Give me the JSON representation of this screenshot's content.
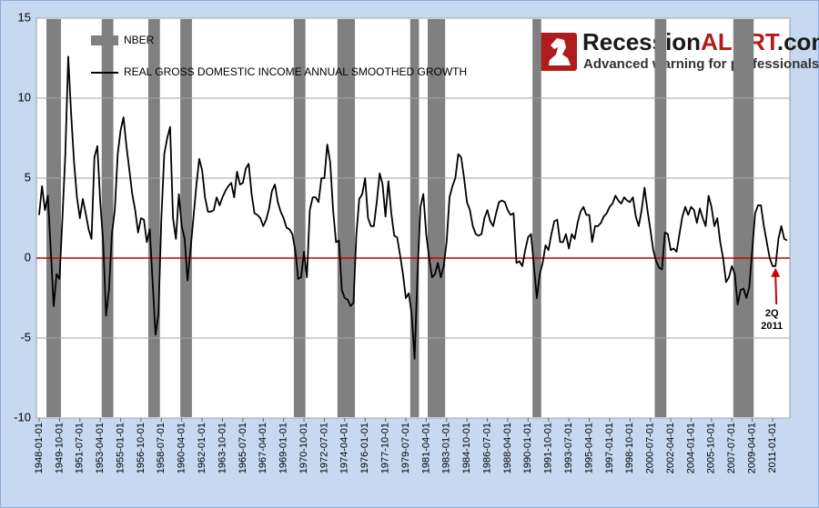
{
  "chart_data": {
    "type": "line",
    "x": [
      "1948-01-01",
      "1948-04-01",
      "1948-07-01",
      "1948-10-01",
      "1949-01-01",
      "1949-04-01",
      "1949-07-01",
      "1949-10-01",
      "1950-01-01",
      "1950-04-01",
      "1950-07-01",
      "1950-10-01",
      "1951-01-01",
      "1951-04-01",
      "1951-07-01",
      "1951-10-01",
      "1952-01-01",
      "1952-04-01",
      "1952-07-01",
      "1952-10-01",
      "1953-01-01",
      "1953-04-01",
      "1953-07-01",
      "1953-10-01",
      "1954-01-01",
      "1954-04-01",
      "1954-07-01",
      "1954-10-01",
      "1955-01-01",
      "1955-04-01",
      "1955-07-01",
      "1955-10-01",
      "1956-01-01",
      "1956-04-01",
      "1956-07-01",
      "1956-10-01",
      "1957-01-01",
      "1957-04-01",
      "1957-07-01",
      "1957-10-01",
      "1958-01-01",
      "1958-04-01",
      "1958-07-01",
      "1958-10-01",
      "1959-01-01",
      "1959-04-01",
      "1959-07-01",
      "1959-10-01",
      "1960-01-01",
      "1960-04-01",
      "1960-07-01",
      "1960-10-01",
      "1961-01-01",
      "1961-04-01",
      "1961-07-01",
      "1961-10-01",
      "1962-01-01",
      "1962-04-01",
      "1962-07-01",
      "1962-10-01",
      "1963-01-01",
      "1963-04-01",
      "1963-07-01",
      "1963-10-01",
      "1964-01-01",
      "1964-04-01",
      "1964-07-01",
      "1964-10-01",
      "1965-01-01",
      "1965-04-01",
      "1965-07-01",
      "1965-10-01",
      "1966-01-01",
      "1966-04-01",
      "1966-07-01",
      "1966-10-01",
      "1967-01-01",
      "1967-04-01",
      "1967-07-01",
      "1967-10-01",
      "1968-01-01",
      "1968-04-01",
      "1968-07-01",
      "1968-10-01",
      "1969-01-01",
      "1969-04-01",
      "1969-07-01",
      "1969-10-01",
      "1970-01-01",
      "1970-04-01",
      "1970-07-01",
      "1970-10-01",
      "1971-01-01",
      "1971-04-01",
      "1971-07-01",
      "1971-10-01",
      "1972-01-01",
      "1972-04-01",
      "1972-07-01",
      "1972-10-01",
      "1973-01-01",
      "1973-04-01",
      "1973-07-01",
      "1973-10-01",
      "1974-01-01",
      "1974-04-01",
      "1974-07-01",
      "1974-10-01",
      "1975-01-01",
      "1975-04-01",
      "1975-07-01",
      "1975-10-01",
      "1976-01-01",
      "1976-04-01",
      "1976-07-01",
      "1976-10-01",
      "1977-01-01",
      "1977-04-01",
      "1977-07-01",
      "1977-10-01",
      "1978-01-01",
      "1978-04-01",
      "1978-07-01",
      "1978-10-01",
      "1979-01-01",
      "1979-04-01",
      "1979-07-01",
      "1979-10-01",
      "1980-01-01",
      "1980-04-01",
      "1980-07-01",
      "1980-10-01",
      "1981-01-01",
      "1981-04-01",
      "1981-07-01",
      "1981-10-01",
      "1982-01-01",
      "1982-04-01",
      "1982-07-01",
      "1982-10-01",
      "1983-01-01",
      "1983-04-01",
      "1983-07-01",
      "1983-10-01",
      "1984-01-01",
      "1984-04-01",
      "1984-07-01",
      "1984-10-01",
      "1985-01-01",
      "1985-04-01",
      "1985-07-01",
      "1985-10-01",
      "1986-01-01",
      "1986-04-01",
      "1986-07-01",
      "1986-10-01",
      "1987-01-01",
      "1987-04-01",
      "1987-07-01",
      "1987-10-01",
      "1988-01-01",
      "1988-04-01",
      "1988-07-01",
      "1988-10-01",
      "1989-01-01",
      "1989-04-01",
      "1989-07-01",
      "1989-10-01",
      "1990-01-01",
      "1990-04-01",
      "1990-07-01",
      "1990-10-01",
      "1991-01-01",
      "1991-04-01",
      "1991-07-01",
      "1991-10-01",
      "1992-01-01",
      "1992-04-01",
      "1992-07-01",
      "1992-10-01",
      "1993-01-01",
      "1993-04-01",
      "1993-07-01",
      "1993-10-01",
      "1994-01-01",
      "1994-04-01",
      "1994-07-01",
      "1994-10-01",
      "1995-01-01",
      "1995-04-01",
      "1995-07-01",
      "1995-10-01",
      "1996-01-01",
      "1996-04-01",
      "1996-07-01",
      "1996-10-01",
      "1997-01-01",
      "1997-04-01",
      "1997-07-01",
      "1997-10-01",
      "1998-01-01",
      "1998-04-01",
      "1998-07-01",
      "1998-10-01",
      "1999-01-01",
      "1999-04-01",
      "1999-07-01",
      "1999-10-01",
      "2000-01-01",
      "2000-04-01",
      "2000-07-01",
      "2000-10-01",
      "2001-01-01",
      "2001-04-01",
      "2001-07-01",
      "2001-10-01",
      "2002-01-01",
      "2002-04-01",
      "2002-07-01",
      "2002-10-01",
      "2003-01-01",
      "2003-04-01",
      "2003-07-01",
      "2003-10-01",
      "2004-01-01",
      "2004-04-01",
      "2004-07-01",
      "2004-10-01",
      "2005-01-01",
      "2005-04-01",
      "2005-07-01",
      "2005-10-01",
      "2006-01-01",
      "2006-04-01",
      "2006-07-01",
      "2006-10-01",
      "2007-01-01",
      "2007-04-01",
      "2007-07-01",
      "2007-10-01",
      "2008-01-01",
      "2008-04-01",
      "2008-07-01",
      "2008-10-01",
      "2009-01-01",
      "2009-04-01",
      "2009-07-01",
      "2009-10-01",
      "2010-01-01",
      "2010-04-01",
      "2010-07-01",
      "2010-10-01",
      "2011-01-01",
      "2011-04-01",
      "2011-07-01",
      "2011-10-01",
      "2012-01-01",
      "2012-04-01"
    ],
    "recessions": {
      "name": "NBER",
      "color": "#808080",
      "periods": [
        [
          "1948-10-01",
          "1949-10-01"
        ],
        [
          "1953-07-01",
          "1954-04-01"
        ],
        [
          "1957-07-01",
          "1958-04-01"
        ],
        [
          "1960-04-01",
          "1961-01-01"
        ],
        [
          "1970-01-01",
          "1970-10-01"
        ],
        [
          "1973-10-01",
          "1975-01-01"
        ],
        [
          "1980-01-01",
          "1980-07-01"
        ],
        [
          "1981-07-01",
          "1982-10-01"
        ],
        [
          "1990-07-01",
          "1991-01-01"
        ],
        [
          "2001-01-01",
          "2001-10-01"
        ],
        [
          "2007-10-01",
          "2009-04-01"
        ]
      ]
    },
    "series": [
      {
        "name": "REAL GROSS DOMESTIC INCOME ANNUAL SMOOTHED GROWTH",
        "color": "#000000",
        "values": [
          2.7,
          4.5,
          3.0,
          3.9,
          0.5,
          -3.0,
          -1.0,
          -1.3,
          2.5,
          6.5,
          12.6,
          9.0,
          6.0,
          3.8,
          2.5,
          3.7,
          2.8,
          1.8,
          1.2,
          6.3,
          7.0,
          3.5,
          1.0,
          -3.6,
          -2.0,
          1.5,
          3.0,
          6.5,
          8.0,
          8.8,
          7.0,
          5.5,
          4.0,
          3.0,
          1.6,
          2.5,
          2.4,
          1.0,
          1.8,
          -1.5,
          -4.8,
          -3.5,
          2.5,
          6.5,
          7.5,
          8.2,
          2.5,
          1.2,
          4.0,
          2.0,
          1.2,
          -1.4,
          0.5,
          2.5,
          4.5,
          6.2,
          5.5,
          3.8,
          2.9,
          2.9,
          3.0,
          3.8,
          3.3,
          3.8,
          4.2,
          4.5,
          4.7,
          3.8,
          5.4,
          4.6,
          4.7,
          5.6,
          5.9,
          4.0,
          2.8,
          2.7,
          2.5,
          2.0,
          2.4,
          3.1,
          4.2,
          4.6,
          3.5,
          2.9,
          2.5,
          1.9,
          1.8,
          1.5,
          0.5,
          -1.3,
          -1.2,
          0.4,
          -1.2,
          3.0,
          3.8,
          3.8,
          3.5,
          5.0,
          5.0,
          7.1,
          6.0,
          3.0,
          1.0,
          1.1,
          -2.0,
          -2.5,
          -2.6,
          -3.0,
          -2.8,
          1.5,
          3.7,
          4.0,
          5.0,
          2.5,
          2.0,
          2.0,
          3.5,
          5.3,
          4.6,
          2.6,
          4.8,
          2.8,
          1.4,
          1.3,
          0.2,
          -1.0,
          -2.5,
          -2.2,
          -3.5,
          -6.3,
          -1.0,
          3.2,
          4.0,
          1.5,
          0.0,
          -1.2,
          -1.0,
          -0.3,
          -1.2,
          -0.5,
          1.0,
          3.8,
          4.5,
          5.0,
          6.5,
          6.3,
          5.0,
          3.5,
          3.0,
          2.0,
          1.5,
          1.4,
          1.5,
          2.5,
          3.0,
          2.3,
          2.0,
          2.8,
          3.5,
          3.6,
          3.5,
          3.0,
          2.7,
          2.8,
          -0.3,
          -0.2,
          -0.5,
          0.5,
          1.3,
          1.5,
          -0.5,
          -2.5,
          -1.0,
          -0.3,
          0.8,
          0.5,
          1.5,
          2.3,
          2.4,
          1.0,
          1.0,
          1.5,
          0.6,
          1.5,
          1.2,
          2.2,
          2.9,
          3.2,
          2.7,
          2.7,
          1.0,
          2.0,
          2.0,
          2.2,
          2.6,
          2.8,
          3.2,
          3.4,
          3.9,
          3.6,
          3.4,
          3.8,
          3.6,
          3.5,
          3.8,
          2.6,
          2.0,
          3.0,
          4.4,
          3.0,
          1.8,
          0.5,
          -0.2,
          -0.6,
          -0.7,
          1.6,
          1.5,
          0.5,
          0.6,
          0.4,
          1.5,
          2.6,
          3.2,
          2.7,
          3.2,
          3.0,
          2.2,
          3.1,
          2.5,
          2.0,
          3.9,
          3.2,
          2.0,
          2.5,
          1.0,
          0.0,
          -1.5,
          -1.2,
          -0.5,
          -1.0,
          -2.9,
          -2.0,
          -1.9,
          -2.5,
          -1.8,
          0.5,
          2.8,
          3.3,
          3.3,
          2.0,
          1.0,
          0.0,
          -0.5,
          -0.5,
          1.2,
          2.0,
          1.2,
          1.1
        ]
      }
    ],
    "xticks": [
      "1948-01-01",
      "1949-10-01",
      "1951-07-01",
      "1953-04-01",
      "1955-01-01",
      "1956-10-01",
      "1958-07-01",
      "1960-04-01",
      "1962-01-01",
      "1963-10-01",
      "1965-07-01",
      "1967-04-01",
      "1969-01-01",
      "1970-10-01",
      "1972-07-01",
      "1974-04-01",
      "1976-01-01",
      "1977-10-01",
      "1979-07-01",
      "1981-04-01",
      "1983-01-01",
      "1984-10-01",
      "1986-07-01",
      "1988-04-01",
      "1990-01-01",
      "1991-10-01",
      "1993-07-01",
      "1995-04-01",
      "1997-01-01",
      "1998-10-01",
      "2000-07-01",
      "2002-04-01",
      "2004-01-01",
      "2005-10-01",
      "2007-07-01",
      "2009-04-01",
      "2011-01-01"
    ],
    "ylim": [
      -10,
      15
    ],
    "yticks": [
      -10,
      -5,
      0,
      5,
      10,
      15
    ],
    "grid": true,
    "zero_line_color": "#cc0000",
    "annotation": {
      "lines": [
        "2Q",
        "2011"
      ],
      "at": "2011-04-01",
      "color": "#cc0000"
    },
    "logo": {
      "parts": [
        "Recession",
        "ALERT",
        ".com"
      ],
      "tagline": "Advanced warning for professionals"
    }
  }
}
